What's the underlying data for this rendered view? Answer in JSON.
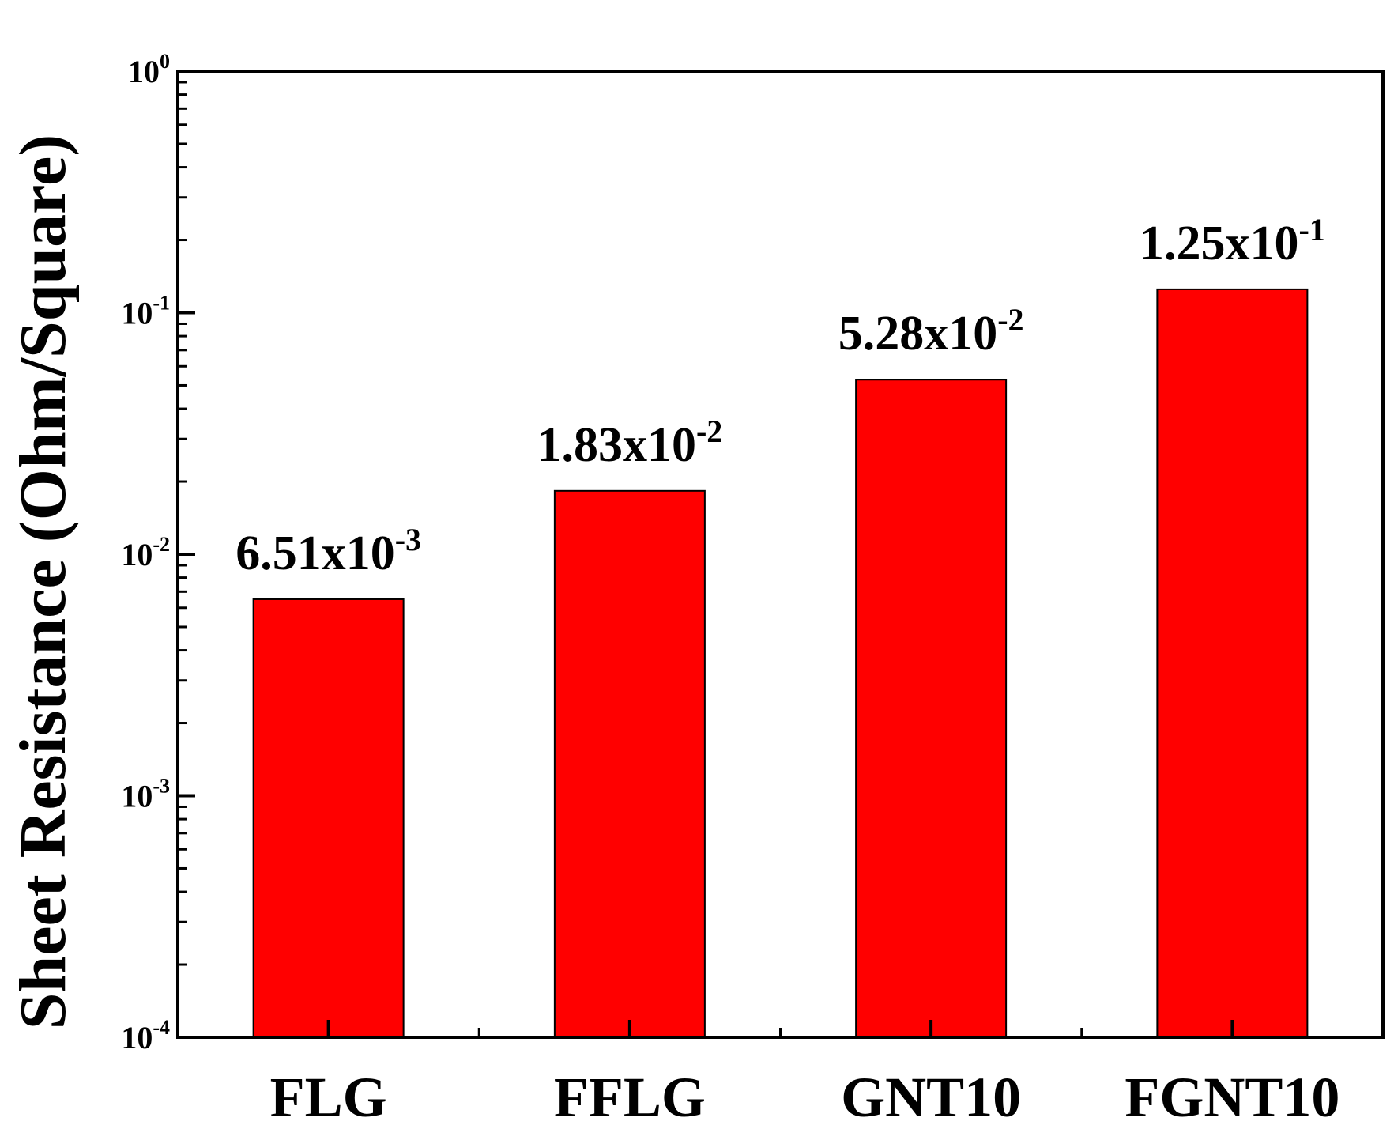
{
  "chart_data": {
    "type": "bar",
    "categories": [
      "FLG",
      "FFLG",
      "GNT10",
      "FGNT10"
    ],
    "values": [
      0.00651,
      0.0183,
      0.0528,
      0.125
    ],
    "data_labels": [
      {
        "mantissa": "6.51x10",
        "exponent": "-3"
      },
      {
        "mantissa": "1.83x10",
        "exponent": "-2"
      },
      {
        "mantissa": "5.28x10",
        "exponent": "-2"
      },
      {
        "mantissa": "1.25x10",
        "exponent": "-1"
      }
    ],
    "ylabel": "Sheet Resistance (Ohm/Square)",
    "xlabel": "",
    "yscale": "log",
    "ylim": [
      0.0001,
      1
    ],
    "y_ticks": [
      {
        "base": "10",
        "exponent": "0",
        "value": 1
      },
      {
        "base": "10",
        "exponent": "-1",
        "value": 0.1
      },
      {
        "base": "10",
        "exponent": "-2",
        "value": 0.01
      },
      {
        "base": "10",
        "exponent": "-3",
        "value": 0.001
      },
      {
        "base": "10",
        "exponent": "-4",
        "value": 0.0001
      }
    ],
    "grid": false,
    "legend": "none",
    "bar_color": "#ff0000"
  }
}
